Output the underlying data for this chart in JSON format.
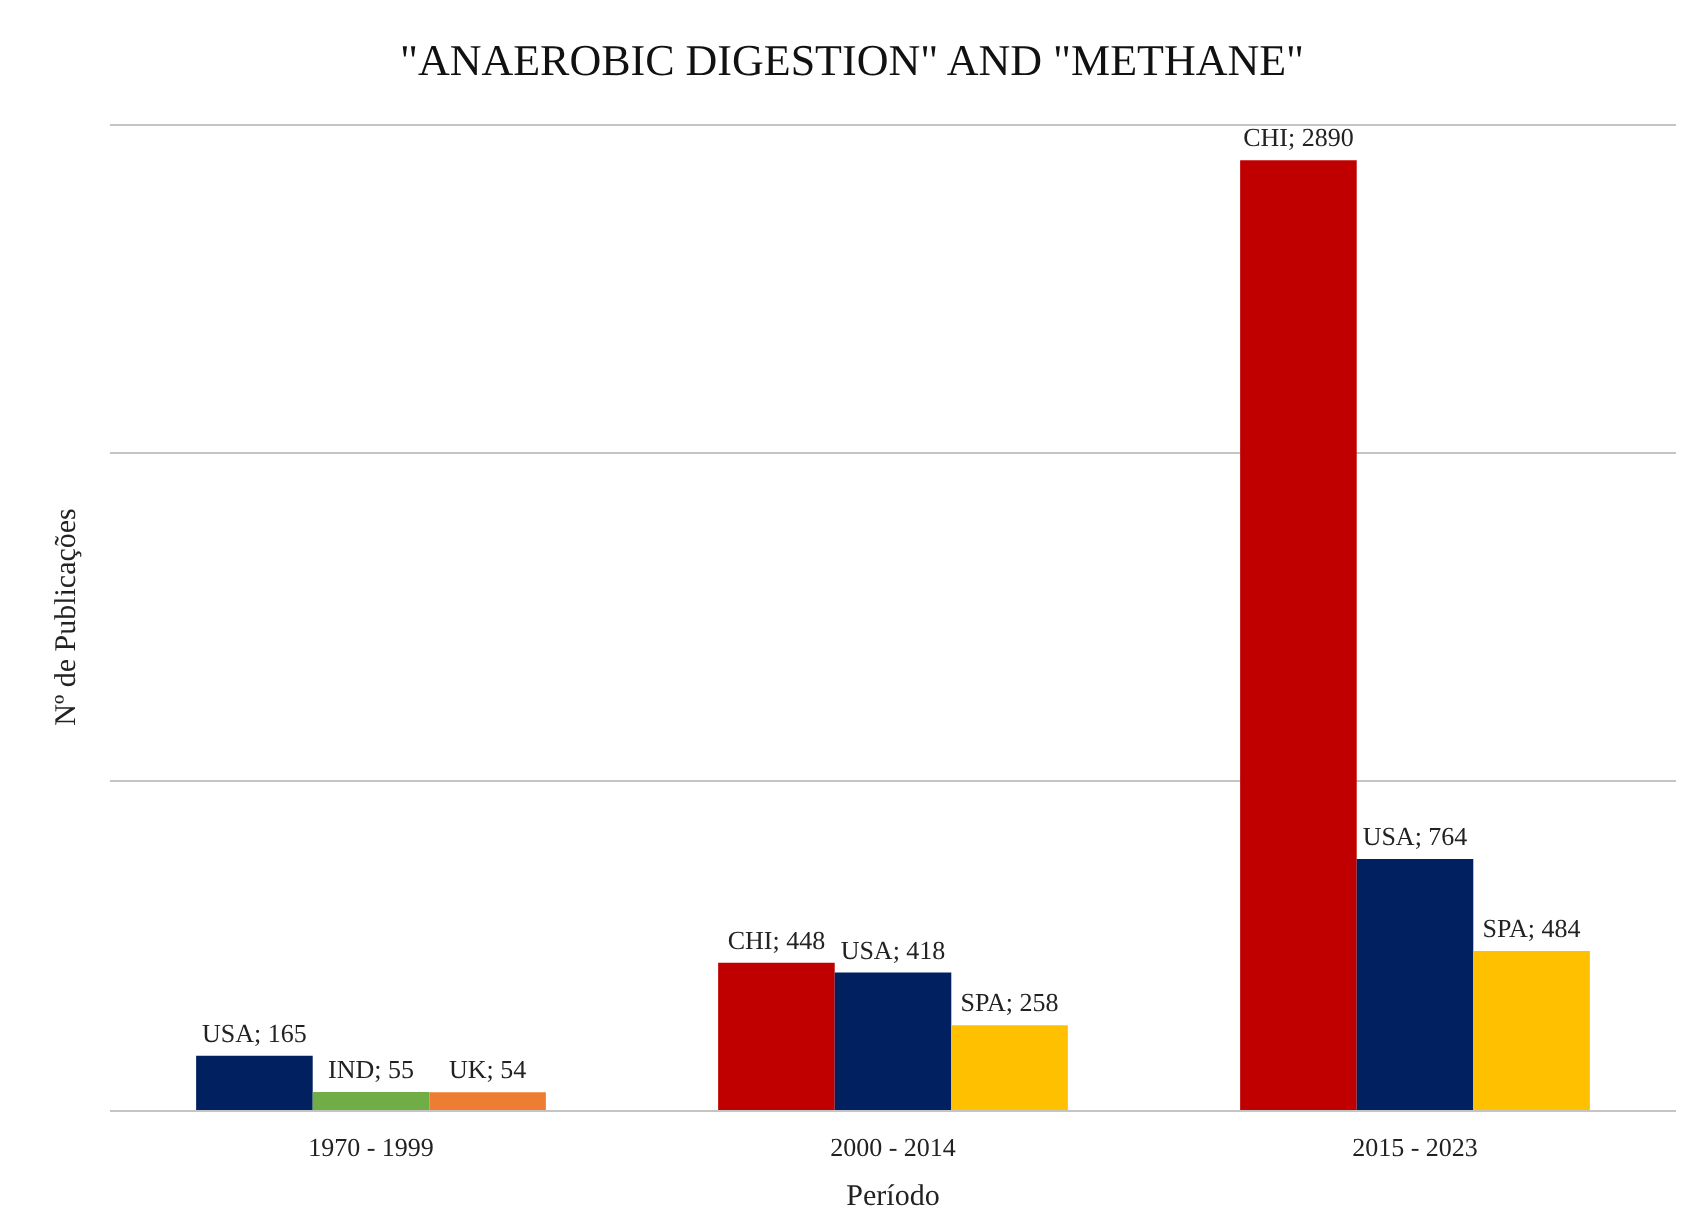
{
  "chart_data": {
    "type": "bar",
    "title": "\"ANAEROBIC DIGESTION\" AND \"METHANE\"",
    "xlabel": "Período",
    "ylabel": "Nº de Publicações",
    "categories": [
      "1970 - 1999",
      "2000 - 2014",
      "2015 - 2023"
    ],
    "series": [
      {
        "values": [
          165,
          448,
          2890
        ],
        "colors": [
          "#002060",
          "#c00000",
          "#c00000"
        ],
        "value_labels": [
          "USA; 165",
          "CHI; 448",
          "CHI; 2890"
        ]
      },
      {
        "values": [
          55,
          418,
          764
        ],
        "colors": [
          "#70ad47",
          "#002060",
          "#002060"
        ],
        "value_labels": [
          "IND; 55",
          "USA; 418",
          "USA; 764"
        ]
      },
      {
        "values": [
          54,
          258,
          484
        ],
        "colors": [
          "#ed7d31",
          "#ffc000",
          "#ffc000"
        ],
        "value_labels": [
          "UK; 54",
          "SPA; 258",
          "SPA; 484"
        ]
      }
    ],
    "ylim": [
      0,
      3000
    ],
    "yticks": [
      {
        "value": 0,
        "label": null
      },
      {
        "value": 1000,
        "label": null
      },
      {
        "value": 2000,
        "label": null
      },
      {
        "value": 3000,
        "label": null
      }
    ],
    "grid": "y",
    "tick_labels": "x"
  }
}
